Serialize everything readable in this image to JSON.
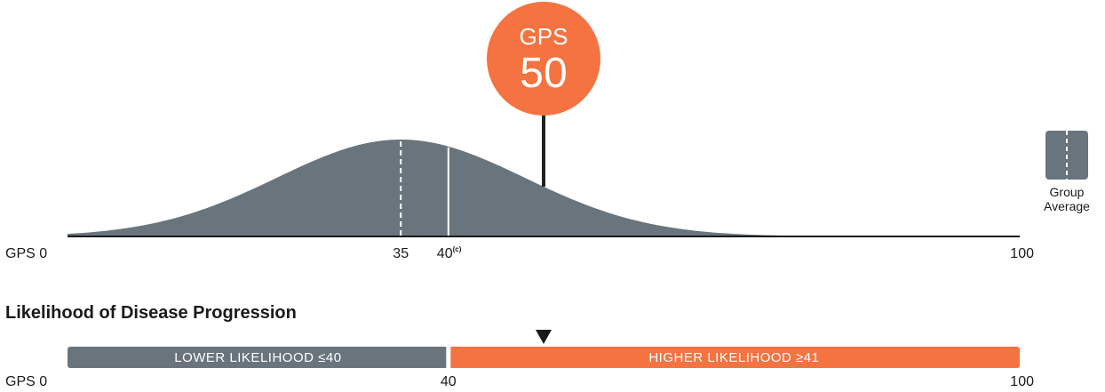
{
  "chart_data": [
    {
      "type": "area",
      "x_range": [
        0,
        100
      ],
      "axis_prefix": "GPS 0",
      "ticks": [
        {
          "value": 35,
          "label": "35"
        },
        {
          "value": 40,
          "label": "40",
          "sup": "(c)"
        },
        {
          "value": 100,
          "label": "100"
        }
      ],
      "distribution": {
        "mean": 35,
        "sd": 13,
        "peak_relative": 1.0
      },
      "group_average": 35,
      "threshold": 40,
      "patient_score": {
        "label": "GPS",
        "value": 50
      },
      "colors": {
        "curve": "#6a747c",
        "badge": "#f47340",
        "axis": "#1a1a1a"
      },
      "legend": {
        "line1": "Group",
        "line2": "Average",
        "icon": "dashed-line-box-icon"
      }
    },
    {
      "type": "bar",
      "title": "Likelihood of Disease Progression",
      "x_range": [
        0,
        100
      ],
      "segments": [
        {
          "from": 0,
          "to": 40,
          "label": "LOWER LIKELIHOOD ≤40",
          "color": "#6a747c"
        },
        {
          "from": 40,
          "to": 100,
          "label": "HIGHER LIKELIHOOD ≥41",
          "color": "#f47340"
        }
      ],
      "marker_value": 50,
      "ticks": [
        {
          "value": 40,
          "label": "40"
        },
        {
          "value": 100,
          "label": "100"
        }
      ],
      "axis_prefix": "GPS 0"
    }
  ]
}
